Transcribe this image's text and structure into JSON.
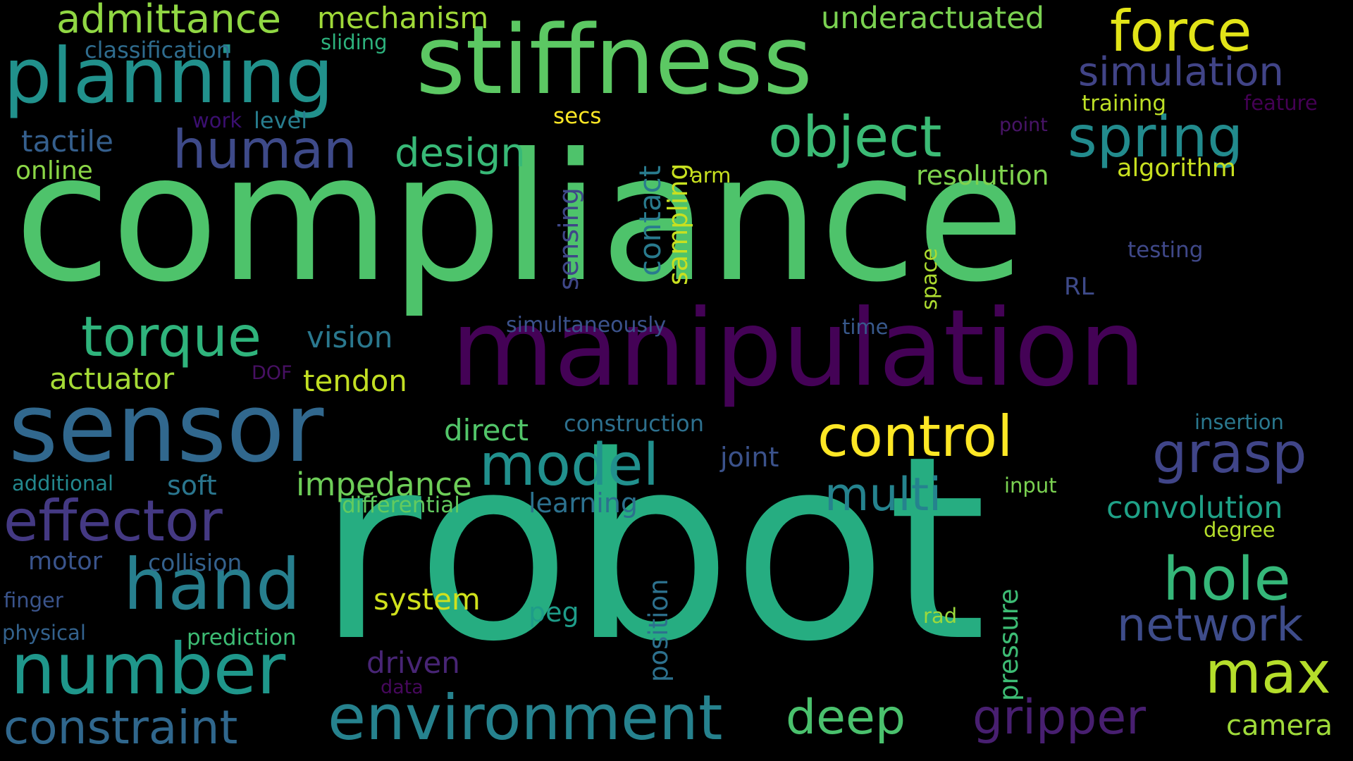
{
  "words": [
    {
      "text": "compliance",
      "color": "#4ec36b"
    },
    {
      "text": "robot",
      "color": "#26ad81"
    },
    {
      "text": "manipulation",
      "color": "#440256"
    },
    {
      "text": "stiffness",
      "color": "#5cc863"
    },
    {
      "text": "sensor",
      "color": "#31688e"
    },
    {
      "text": "planning",
      "color": "#21918c"
    },
    {
      "text": "number",
      "color": "#1f978b"
    },
    {
      "text": "control",
      "color": "#fde725"
    },
    {
      "text": "hand",
      "color": "#277f8e"
    },
    {
      "text": "environment",
      "color": "#26828e"
    },
    {
      "text": "object",
      "color": "#3bbb75"
    },
    {
      "text": "effector",
      "color": "#443983"
    },
    {
      "text": "constraint",
      "color": "#30678d"
    },
    {
      "text": "admittance",
      "color": "#90d743"
    },
    {
      "text": "human",
      "color": "#3e4a89"
    },
    {
      "text": "spring",
      "color": "#228b8d"
    },
    {
      "text": "force",
      "color": "#e2e418"
    },
    {
      "text": "torque",
      "color": "#2fb47c"
    },
    {
      "text": "model",
      "color": "#21908d"
    },
    {
      "text": "grasp",
      "color": "#404588"
    },
    {
      "text": "hole",
      "color": "#35b779"
    },
    {
      "text": "max",
      "color": "#b5de2b"
    },
    {
      "text": "multi",
      "color": "#25838e"
    },
    {
      "text": "network",
      "color": "#3e4c8a"
    },
    {
      "text": "gripper",
      "color": "#481f70"
    },
    {
      "text": "deep",
      "color": "#4ac16d"
    },
    {
      "text": "simulation",
      "color": "#414487"
    },
    {
      "text": "design",
      "color": "#38b977"
    },
    {
      "text": "mechanism",
      "color": "#a0da39"
    },
    {
      "text": "underactuated",
      "color": "#7ad151"
    },
    {
      "text": "convolution",
      "color": "#1fa187"
    },
    {
      "text": "impedance",
      "color": "#6ece58"
    },
    {
      "text": "direct",
      "color": "#52c569"
    },
    {
      "text": "tendon",
      "color": "#c2df23"
    },
    {
      "text": "actuator",
      "color": "#a5db36"
    },
    {
      "text": "vision",
      "color": "#2a788e"
    },
    {
      "text": "tactile",
      "color": "#355f8d"
    },
    {
      "text": "system",
      "color": "#d0e11c"
    },
    {
      "text": "driven",
      "color": "#482575"
    },
    {
      "text": "camera",
      "color": "#9fda3a"
    },
    {
      "text": "soft",
      "color": "#2a768e"
    },
    {
      "text": "learning",
      "color": "#2c718e"
    },
    {
      "text": "joint",
      "color": "#3b528b"
    },
    {
      "text": "resolution",
      "color": "#7fd34e"
    },
    {
      "text": "peg",
      "color": "#1e9c89"
    },
    {
      "text": "online",
      "color": "#8bd646"
    },
    {
      "text": "algorithm",
      "color": "#c8e020"
    },
    {
      "text": "motor",
      "color": "#3a548c"
    },
    {
      "text": "collision",
      "color": "#34618d"
    },
    {
      "text": "classification",
      "color": "#2f6c8e"
    },
    {
      "text": "construction",
      "color": "#2d708e"
    },
    {
      "text": "level",
      "color": "#287d8e"
    },
    {
      "text": "differential",
      "color": "#63cb5f"
    },
    {
      "text": "prediction",
      "color": "#3dbc74"
    },
    {
      "text": "secs",
      "color": "#fde725"
    },
    {
      "text": "training",
      "color": "#bddf26"
    },
    {
      "text": "testing",
      "color": "#3f4889"
    },
    {
      "text": "simultaneously",
      "color": "#3b528b"
    },
    {
      "text": "insertion",
      "color": "#2a788e"
    },
    {
      "text": "additional",
      "color": "#23888e"
    },
    {
      "text": "sliding",
      "color": "#2db27d"
    },
    {
      "text": "finger",
      "color": "#3a548c"
    },
    {
      "text": "physical",
      "color": "#33628d"
    },
    {
      "text": "degree",
      "color": "#b5de2b"
    },
    {
      "text": "input",
      "color": "#7ad151"
    },
    {
      "text": "rad",
      "color": "#9bd93c"
    },
    {
      "text": "time",
      "color": "#38598c"
    },
    {
      "text": "RL",
      "color": "#3e4a89"
    },
    {
      "text": "arm",
      "color": "#c8e020"
    },
    {
      "text": "work",
      "color": "#3b0f70"
    },
    {
      "text": "feature",
      "color": "#440154"
    },
    {
      "text": "point",
      "color": "#481467"
    },
    {
      "text": "DOF",
      "color": "#471063"
    },
    {
      "text": "data",
      "color": "#46085c"
    },
    {
      "text": "sensing",
      "color": "#3f4788"
    },
    {
      "text": "contact",
      "color": "#297b8e"
    },
    {
      "text": "sampling",
      "color": "#c8e020"
    },
    {
      "text": "space",
      "color": "#addc30"
    },
    {
      "text": "position",
      "color": "#2d718e"
    },
    {
      "text": "pressure",
      "color": "#3dbc74"
    }
  ]
}
